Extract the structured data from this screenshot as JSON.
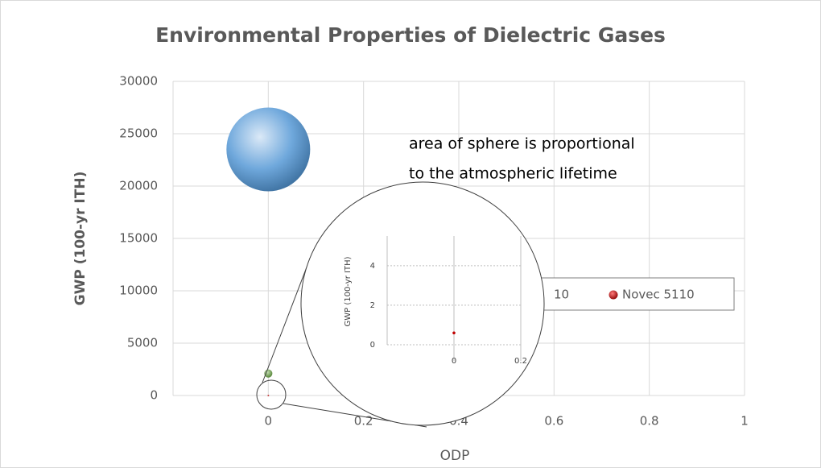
{
  "chart_data": [
    {
      "type": "bubble",
      "title": "Environmental Properties of Dielectric Gases",
      "x_label": "ODP",
      "y_label": "GWP (100-yr ITH)",
      "xlim": [
        -0.2,
        1
      ],
      "xticks": [
        0,
        0.2,
        0.4,
        0.6,
        0.8,
        1
      ],
      "ylim": [
        0,
        30000
      ],
      "yticks": [
        0,
        5000,
        10000,
        15000,
        20000,
        25000,
        30000
      ],
      "grid": true,
      "annotation": [
        "area of sphere is proportional",
        "to the atmospheric lifetime"
      ],
      "series": [
        {
          "color": "#6fa8dc",
          "x": [
            0
          ],
          "values": [
            23500
          ],
          "sizes": [
            3200
          ]
        },
        {
          "color": "#70ad47",
          "x": [
            0
          ],
          "values": [
            2100
          ],
          "sizes": [
            30
          ]
        },
        {
          "name": "Novec 5110",
          "color": "#c00000",
          "x": [
            0
          ],
          "values": [
            0.6
          ],
          "sizes": [
            0.04
          ]
        }
      ]
    },
    {
      "type": "scatter",
      "y_label": "GWP (100-yr ITH)",
      "xlim": [
        -0.2,
        0.2
      ],
      "xticks": [
        0,
        0.2
      ],
      "ylim": [
        0,
        5.5
      ],
      "yticks": [
        0,
        2,
        4
      ],
      "grid": true,
      "series": [
        {
          "color": "#c00000",
          "x": [
            0
          ],
          "values": [
            0.6
          ]
        }
      ]
    }
  ],
  "legend_fragment": "10"
}
